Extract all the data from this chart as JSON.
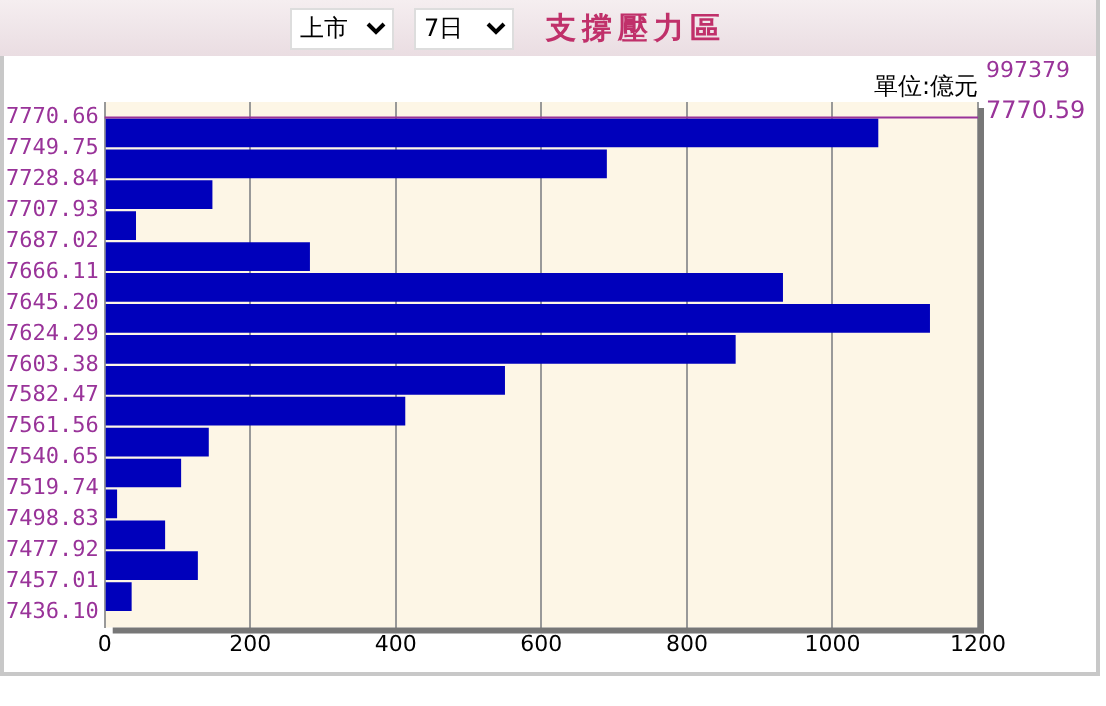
{
  "chart_data": {
    "type": "bar",
    "orientation": "horizontal",
    "title": "支撐壓力區",
    "annotations": [
      "上市",
      "7日",
      "單位:億元",
      "997379"
    ],
    "x": [
      7760.2,
      7739.3,
      7718.4,
      7697.5,
      7676.6,
      7655.7,
      7634.7,
      7613.8,
      7592.9,
      7572.0,
      7551.1,
      7530.2,
      7509.3,
      7488.4,
      7467.5,
      7446.6
    ],
    "values": [
      1063,
      690,
      148,
      43,
      282,
      932,
      1134,
      867,
      550,
      413,
      143,
      105,
      17,
      83,
      128,
      37
    ],
    "color": "#0000bb",
    "xlim": [
      0,
      1200
    ],
    "xticks": [
      0,
      200,
      400,
      600,
      800,
      1000,
      1200
    ],
    "ylim": [
      7436.1,
      7770.66
    ],
    "yticks": [
      {
        "value": 7770.66,
        "label": "7770.66"
      },
      {
        "value": 7749.75,
        "label": "7749.75"
      },
      {
        "value": 7728.84,
        "label": "7728.84"
      },
      {
        "value": 7707.93,
        "label": "7707.93"
      },
      {
        "value": 7687.02,
        "label": "7687.02"
      },
      {
        "value": 7666.11,
        "label": "7666.11"
      },
      {
        "value": 7645.2,
        "label": "7645.20"
      },
      {
        "value": 7624.29,
        "label": "7624.29"
      },
      {
        "value": 7603.38,
        "label": "7603.38"
      },
      {
        "value": 7582.47,
        "label": "7582.47"
      },
      {
        "value": 7561.56,
        "label": "7561.56"
      },
      {
        "value": 7540.65,
        "label": "7540.65"
      },
      {
        "value": 7519.74,
        "label": "7519.74"
      },
      {
        "value": 7498.83,
        "label": "7498.83"
      },
      {
        "value": 7477.92,
        "label": "7477.92"
      },
      {
        "value": 7457.01,
        "label": "7457.01"
      },
      {
        "value": 7436.1,
        "label": "7436.10"
      }
    ],
    "ref_lines": [
      {
        "axis": "y",
        "value": 7770.59,
        "label": "7770.59",
        "color": "#993399"
      }
    ],
    "grid": "x",
    "legend": false
  }
}
